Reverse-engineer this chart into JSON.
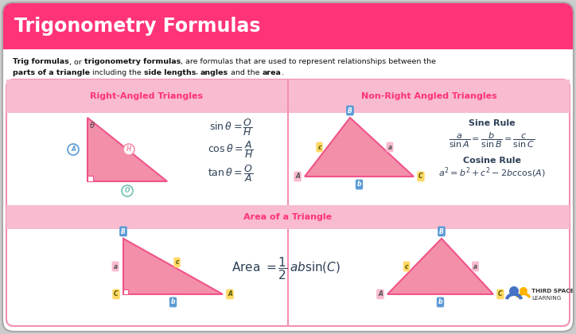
{
  "title": "Trigonometry Formulas",
  "title_bg": "#FF3377",
  "title_color": "#FFFFFF",
  "bg_color": "#FFFFFF",
  "outer_bg": "#DDDDDD",
  "pink_border": "#F48FB1",
  "pink_header": "#F8BBD0",
  "triangle_fill": "#F48FAA",
  "triangle_edge": "#EF5488",
  "blue_label_bg": "#5B9BD5",
  "blue_label_fg": "#FFFFFF",
  "yellow_label_bg": "#FFD966",
  "yellow_label_fg": "#555500",
  "pink_label_bg": "#F48FAA",
  "pink_label_fg": "#FFFFFF",
  "green_label_bg": "#70C1B3",
  "text_pink": "#FF3377",
  "text_dark": "#1A1A2E",
  "formula_color": "#2E4057",
  "section1": "Right-Angled Triangles",
  "section2": "Non-Right Angled Triangles",
  "section3": "Area of a Triangle",
  "sine_rule": "Sine Rule",
  "cosine_rule": "Cosine Rule",
  "tsl_blue": "#4472C4",
  "tsl_yellow": "#FFD700",
  "tsl_text": "#333333"
}
